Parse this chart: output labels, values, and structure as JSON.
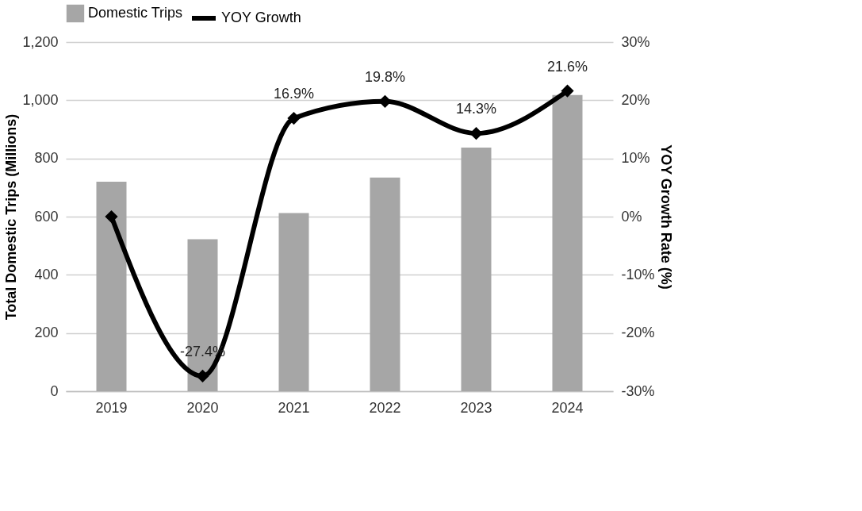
{
  "chart_data": {
    "type": "bar",
    "categories": [
      "2019",
      "2020",
      "2021",
      "2022",
      "2023",
      "2024"
    ],
    "ylabel": "Total Domestic Trips  (Millions)",
    "y2label": "YOY Growth Rate (%)",
    "series": [
      {
        "name": "Domestic Trips",
        "color": "#a6a6a6",
        "values": [
          720,
          522,
          612,
          734,
          837,
          1018
        ]
      },
      {
        "name": "YOY Growth",
        "type": "line",
        "axis": "y2",
        "color": "#000000",
        "values": [
          0,
          -27.4,
          16.9,
          19.8,
          14.3,
          21.6
        ],
        "value_labels": [
          null,
          "-27.4%",
          "16.9%",
          "19.8%",
          "14.3%",
          "21.6%"
        ],
        "marker": "diamond",
        "line_style": "solid"
      }
    ],
    "ylim": [
      0,
      1200
    ],
    "yticks": [
      0,
      200,
      400,
      600,
      800,
      {
        "value": 1000,
        "label": "1,000"
      },
      {
        "value": 1200,
        "label": "1,200"
      }
    ],
    "y2lim": [
      -30,
      30
    ],
    "y2ticks": [
      {
        "value": -30,
        "label": "-30%"
      },
      {
        "value": -20,
        "label": "-20%"
      },
      {
        "value": -10,
        "label": "-10%"
      },
      {
        "value": 0,
        "label": "0%"
      },
      {
        "value": 10,
        "label": "10%"
      },
      {
        "value": 20,
        "label": "20%"
      },
      {
        "value": 30,
        "label": "30%"
      }
    ],
    "grid": "y",
    "legend": "top"
  }
}
